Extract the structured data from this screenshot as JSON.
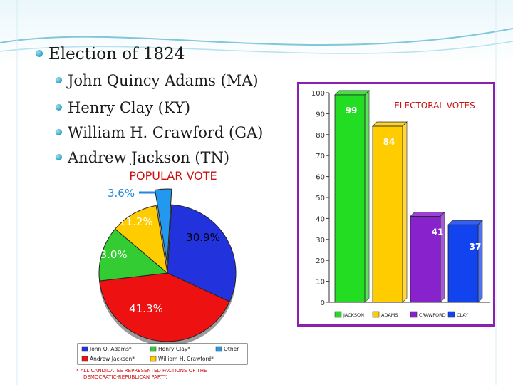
{
  "slide": {
    "title": "Election of 1824",
    "bullets": [
      {
        "label": "John Quincy Adams (MA)"
      },
      {
        "label": "Henry Clay (KY)"
      },
      {
        "label": "William H. Crawford (GA)"
      },
      {
        "label": "Andrew Jackson (TN)"
      }
    ]
  },
  "chart_data": [
    {
      "type": "pie",
      "title": "POPULAR VOTE",
      "slices": [
        {
          "label": "John Q. Adams*",
          "value": 30.9,
          "display": "30.9%",
          "color": "#2233dd"
        },
        {
          "label": "Andrew Jackson*",
          "value": 41.3,
          "display": "41.3%",
          "color": "#ee1111"
        },
        {
          "label": "Henry Clay*",
          "value": 13.0,
          "display": "13.0%",
          "color": "#33cc33"
        },
        {
          "label": "William H. Crawford*",
          "value": 11.2,
          "display": "11.2%",
          "color": "#ffcc00"
        },
        {
          "label": "Other",
          "value": 3.6,
          "display": "3.6%",
          "color": "#2299ee"
        }
      ],
      "legend": [
        "John Q. Adams*",
        "Henry Clay*",
        "Other",
        "Andrew Jackson*",
        "William H. Crawford*"
      ],
      "footnote": [
        "* ALL CANDIDATES REPRESENTED FACTIONS OF THE",
        "DEMOCRATIC-REPUBLICAN PARTY."
      ]
    },
    {
      "type": "bar",
      "title": "ELECTORAL VOTES",
      "categories": [
        "JACKSON",
        "ADAMS",
        "CRAWFORD",
        "CLAY"
      ],
      "values": [
        99,
        84,
        41,
        37
      ],
      "colors": [
        "#22dd22",
        "#ffcc00",
        "#8822cc",
        "#1144ee"
      ],
      "ylim": [
        0,
        100
      ],
      "yticks": [
        0,
        10,
        20,
        30,
        40,
        50,
        60,
        70,
        80,
        90,
        100
      ],
      "grid": false,
      "legend_position": "bottom"
    }
  ],
  "colors": {
    "bar_frame": "#8a1fb0",
    "title_red": "#cc1111",
    "bullet": "#2a9fc0"
  }
}
